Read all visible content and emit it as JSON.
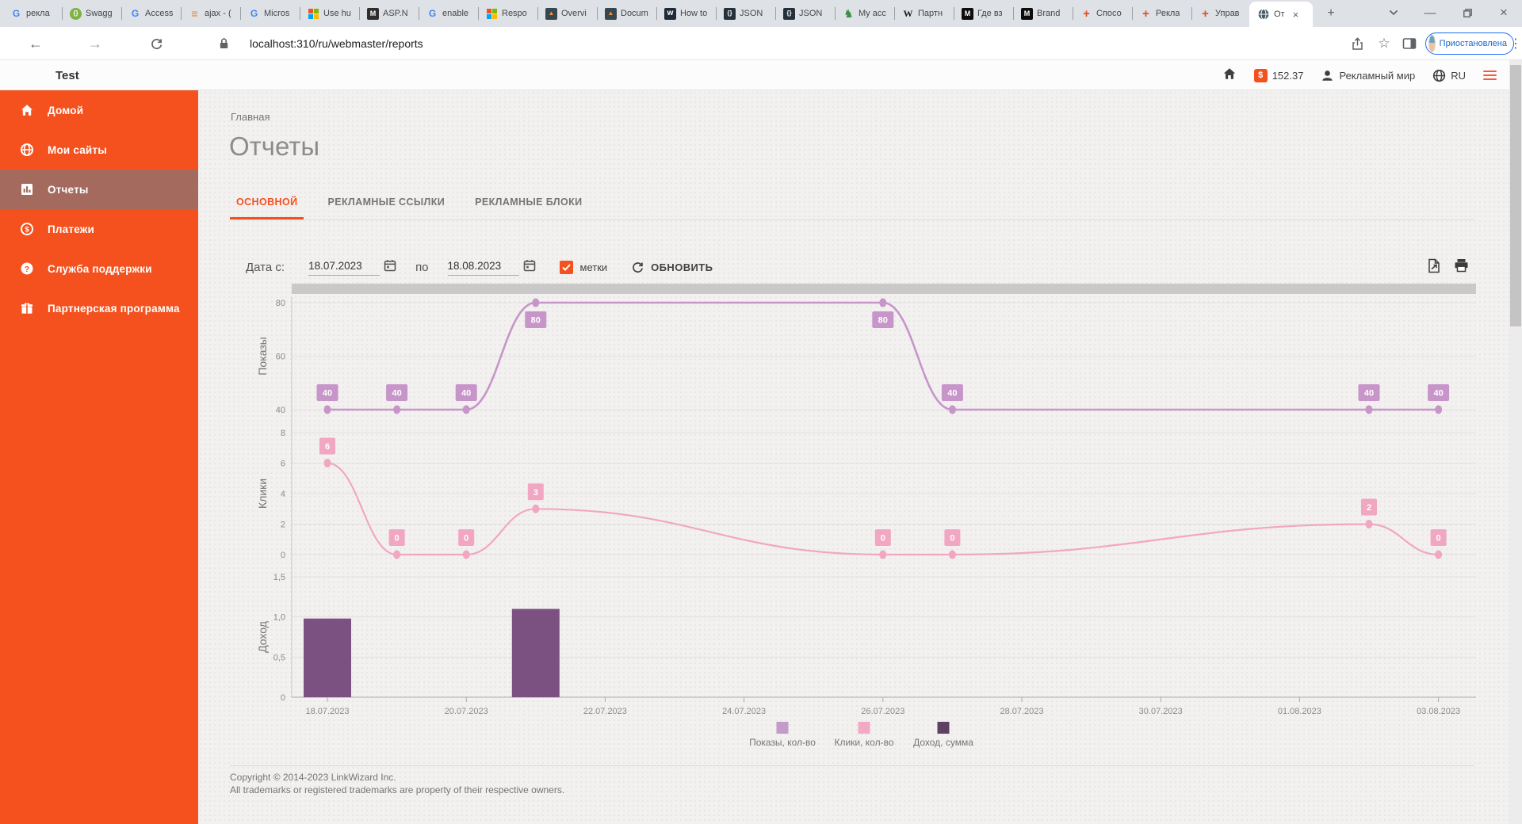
{
  "theme": {
    "accent": "#f4511e",
    "sidebar_bg": "#f4511e",
    "sidebar_active_bg": "#a56a5e"
  },
  "browser": {
    "tabs": [
      {
        "icon": "google",
        "label": "рекла"
      },
      {
        "icon": "swagger",
        "label": "Swagg"
      },
      {
        "icon": "google",
        "label": "Access"
      },
      {
        "icon": "stackoverflow",
        "label": "ajax - ("
      },
      {
        "icon": "google",
        "label": "Micros"
      },
      {
        "icon": "microsoft",
        "label": "Use hu"
      },
      {
        "icon": "msdark",
        "label": "ASP.N"
      },
      {
        "icon": "google",
        "label": "enable"
      },
      {
        "icon": "microsoft",
        "label": "Respo"
      },
      {
        "icon": "amcharts",
        "label": "Overvi"
      },
      {
        "icon": "amcharts",
        "label": "Docum"
      },
      {
        "icon": "wp",
        "label": "How to"
      },
      {
        "icon": "json",
        "label": "JSON"
      },
      {
        "icon": "json",
        "label": "JSON"
      },
      {
        "icon": "knight",
        "label": "My acc"
      },
      {
        "icon": "wikipedia",
        "label": "Партн"
      },
      {
        "icon": "mdark",
        "label": "Где вз"
      },
      {
        "icon": "mdark",
        "label": "Brand"
      },
      {
        "icon": "cross",
        "label": "Спосо"
      },
      {
        "icon": "cross",
        "label": "Рекла"
      },
      {
        "icon": "cross",
        "label": "Управ"
      }
    ],
    "active_tab": {
      "icon": "globe-dark",
      "label": "От"
    },
    "new_tab_glyph": "+",
    "url": "localhost:310/ru/webmaster/reports",
    "profile_label": "Приостановлена"
  },
  "app_header": {
    "brand": "Test",
    "balance": "152.37",
    "user": "Рекламный мир",
    "lang": "RU"
  },
  "sidebar": {
    "items": [
      {
        "icon": "home",
        "label": "Домой",
        "active": false
      },
      {
        "icon": "globe",
        "label": "Мои сайты",
        "active": false
      },
      {
        "icon": "reports",
        "label": "Отчеты",
        "active": true
      },
      {
        "icon": "payments",
        "label": "Платежи",
        "active": false
      },
      {
        "icon": "support",
        "label": "Служба поддержки",
        "active": false
      },
      {
        "icon": "partner",
        "label": "Партнерская программа",
        "active": false
      }
    ]
  },
  "main": {
    "breadcrumb": "Главная",
    "title": "Отчеты",
    "tabs": [
      {
        "label": "ОСНОВНОЙ",
        "active": true
      },
      {
        "label": "РЕКЛАМНЫЕ ССЫЛКИ",
        "active": false
      },
      {
        "label": "РЕКЛАМНЫЕ БЛОКИ",
        "active": false
      }
    ],
    "controls": {
      "date_from_label": "Дата с:",
      "date_from": "18.07.2023",
      "between_label": "по",
      "date_to": "18.08.2023",
      "marks_label": "метки",
      "refresh_label": "ОБНОВИТЬ"
    }
  },
  "chart_data": {
    "type": "mixed",
    "x_axis": {
      "days_total": 17,
      "start_date": "18.07.2023",
      "end_date": "03.08.2023",
      "tick_labels": [
        "18.07.2023",
        "20.07.2023",
        "22.07.2023",
        "24.07.2023",
        "26.07.2023",
        "28.07.2023",
        "30.07.2023",
        "01.08.2023",
        "03.08.2023"
      ]
    },
    "panels": [
      {
        "name": "Показы",
        "type": "line",
        "color": "#c795c9",
        "y_ticks": [
          40,
          60,
          80
        ],
        "y_min": 40,
        "y_max": 80,
        "points": [
          {
            "day": 0,
            "value": 40
          },
          {
            "day": 1,
            "value": 40
          },
          {
            "day": 2,
            "value": 40
          },
          {
            "day": 3,
            "value": 80
          },
          {
            "day": 8,
            "value": 80
          },
          {
            "day": 9,
            "value": 40
          },
          {
            "day": 15,
            "value": 40
          },
          {
            "day": 16,
            "value": 40
          }
        ]
      },
      {
        "name": "Клики",
        "type": "line",
        "color": "#f1a7c2",
        "y_ticks": [
          0,
          2,
          4,
          6,
          8
        ],
        "y_min": 0,
        "y_max": 8,
        "points": [
          {
            "day": 0,
            "value": 6
          },
          {
            "day": 1,
            "value": 0
          },
          {
            "day": 2,
            "value": 0
          },
          {
            "day": 3,
            "value": 3
          },
          {
            "day": 8,
            "value": 0
          },
          {
            "day": 9,
            "value": 0
          },
          {
            "day": 15,
            "value": 2
          },
          {
            "day": 16,
            "value": 0
          }
        ]
      },
      {
        "name": "Доход",
        "type": "bar",
        "color": "#7a5181",
        "y_ticks": [
          0,
          0.5,
          1.0,
          1.5
        ],
        "y_tick_labels": [
          "0",
          "0,5",
          "1,0",
          "1,5"
        ],
        "y_min": 0,
        "y_max": 1.5,
        "bars": [
          {
            "day": 0,
            "value": 0.98
          },
          {
            "day": 3,
            "value": 1.1
          }
        ]
      }
    ],
    "legend": [
      {
        "label": "Показы, кол-во",
        "color": "#c49bc9"
      },
      {
        "label": "Клики, кол-во",
        "color": "#f2a9c4"
      },
      {
        "label": "Доход, сумма",
        "color": "#5e4165"
      }
    ],
    "grid": true,
    "legend_position": "bottom"
  },
  "footer": {
    "line1": "Copyright © 2014-2023 LinkWizard Inc.",
    "line2": "All trademarks or registered trademarks are property of their respective owners."
  }
}
